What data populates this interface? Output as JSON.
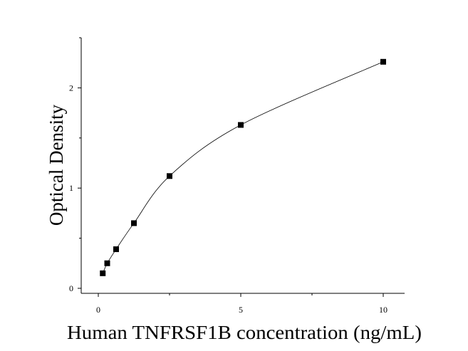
{
  "chart_data": {
    "type": "scatter",
    "xlabel": "Human TNFRSF1B concentration (ng/mL)",
    "ylabel": "Optical Density",
    "xlim": [
      -0.6,
      10.75
    ],
    "ylim": [
      -0.05,
      2.5
    ],
    "xticks": [
      "0",
      "5",
      "10"
    ],
    "xtick_values": [
      0,
      5,
      10
    ],
    "yticks": [
      "0",
      "1",
      "2"
    ],
    "ytick_values": [
      0,
      1,
      2
    ],
    "grid": false,
    "series": [
      {
        "x": [
          0.156,
          0.313,
          0.625,
          1.25,
          2.5,
          5,
          10
        ],
        "y": [
          0.15,
          0.25,
          0.39,
          0.65,
          1.12,
          1.63,
          2.26
        ]
      }
    ],
    "fit_curve": {
      "type": "smooth",
      "through": "points"
    }
  }
}
